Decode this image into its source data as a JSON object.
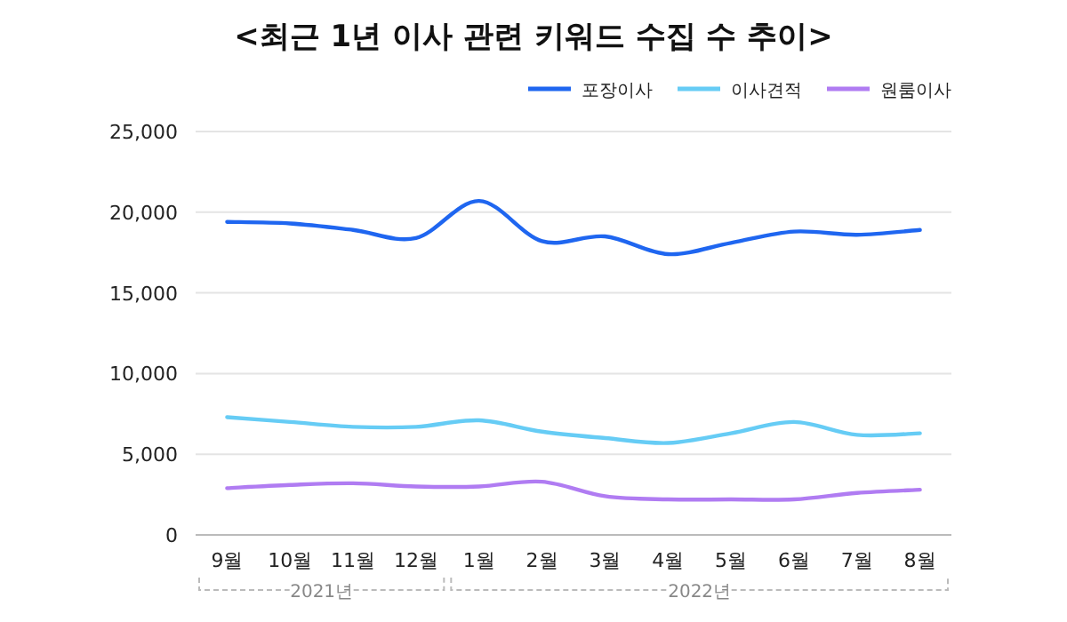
{
  "chart_data": {
    "type": "line",
    "title": "<최근 1년 이사 관련 키워드 수집 수 추이>",
    "categories": [
      "9월",
      "10월",
      "11월",
      "12월",
      "1월",
      "2월",
      "3월",
      "4월",
      "5월",
      "6월",
      "7월",
      "8월"
    ],
    "series": [
      {
        "name": "포장이사",
        "color": "#1f66f0",
        "values": [
          19400,
          19300,
          18900,
          18400,
          20700,
          18200,
          18500,
          17400,
          18100,
          18800,
          18600,
          18900
        ]
      },
      {
        "name": "이사견적",
        "color": "#66ccf5",
        "values": [
          7300,
          7000,
          6700,
          6700,
          7100,
          6400,
          6000,
          5700,
          6300,
          7000,
          6200,
          6300
        ]
      },
      {
        "name": "원룸이사",
        "color": "#b07cf2",
        "values": [
          2900,
          3100,
          3200,
          3000,
          3000,
          3300,
          2400,
          2200,
          2200,
          2200,
          2600,
          2800
        ]
      }
    ],
    "ylim": [
      0,
      25000
    ],
    "yticks": [
      {
        "value": 0,
        "label": "0"
      },
      {
        "value": 5000,
        "label": "5,000"
      },
      {
        "value": 10000,
        "label": "10,000"
      },
      {
        "value": 15000,
        "label": "15,000"
      },
      {
        "value": 20000,
        "label": "20,000"
      },
      {
        "value": 25000,
        "label": "25,000"
      }
    ],
    "grid": "y",
    "legend": "top right",
    "marker": "none",
    "line_style": "solid",
    "annotations": [
      "2021년",
      "2022년"
    ]
  }
}
